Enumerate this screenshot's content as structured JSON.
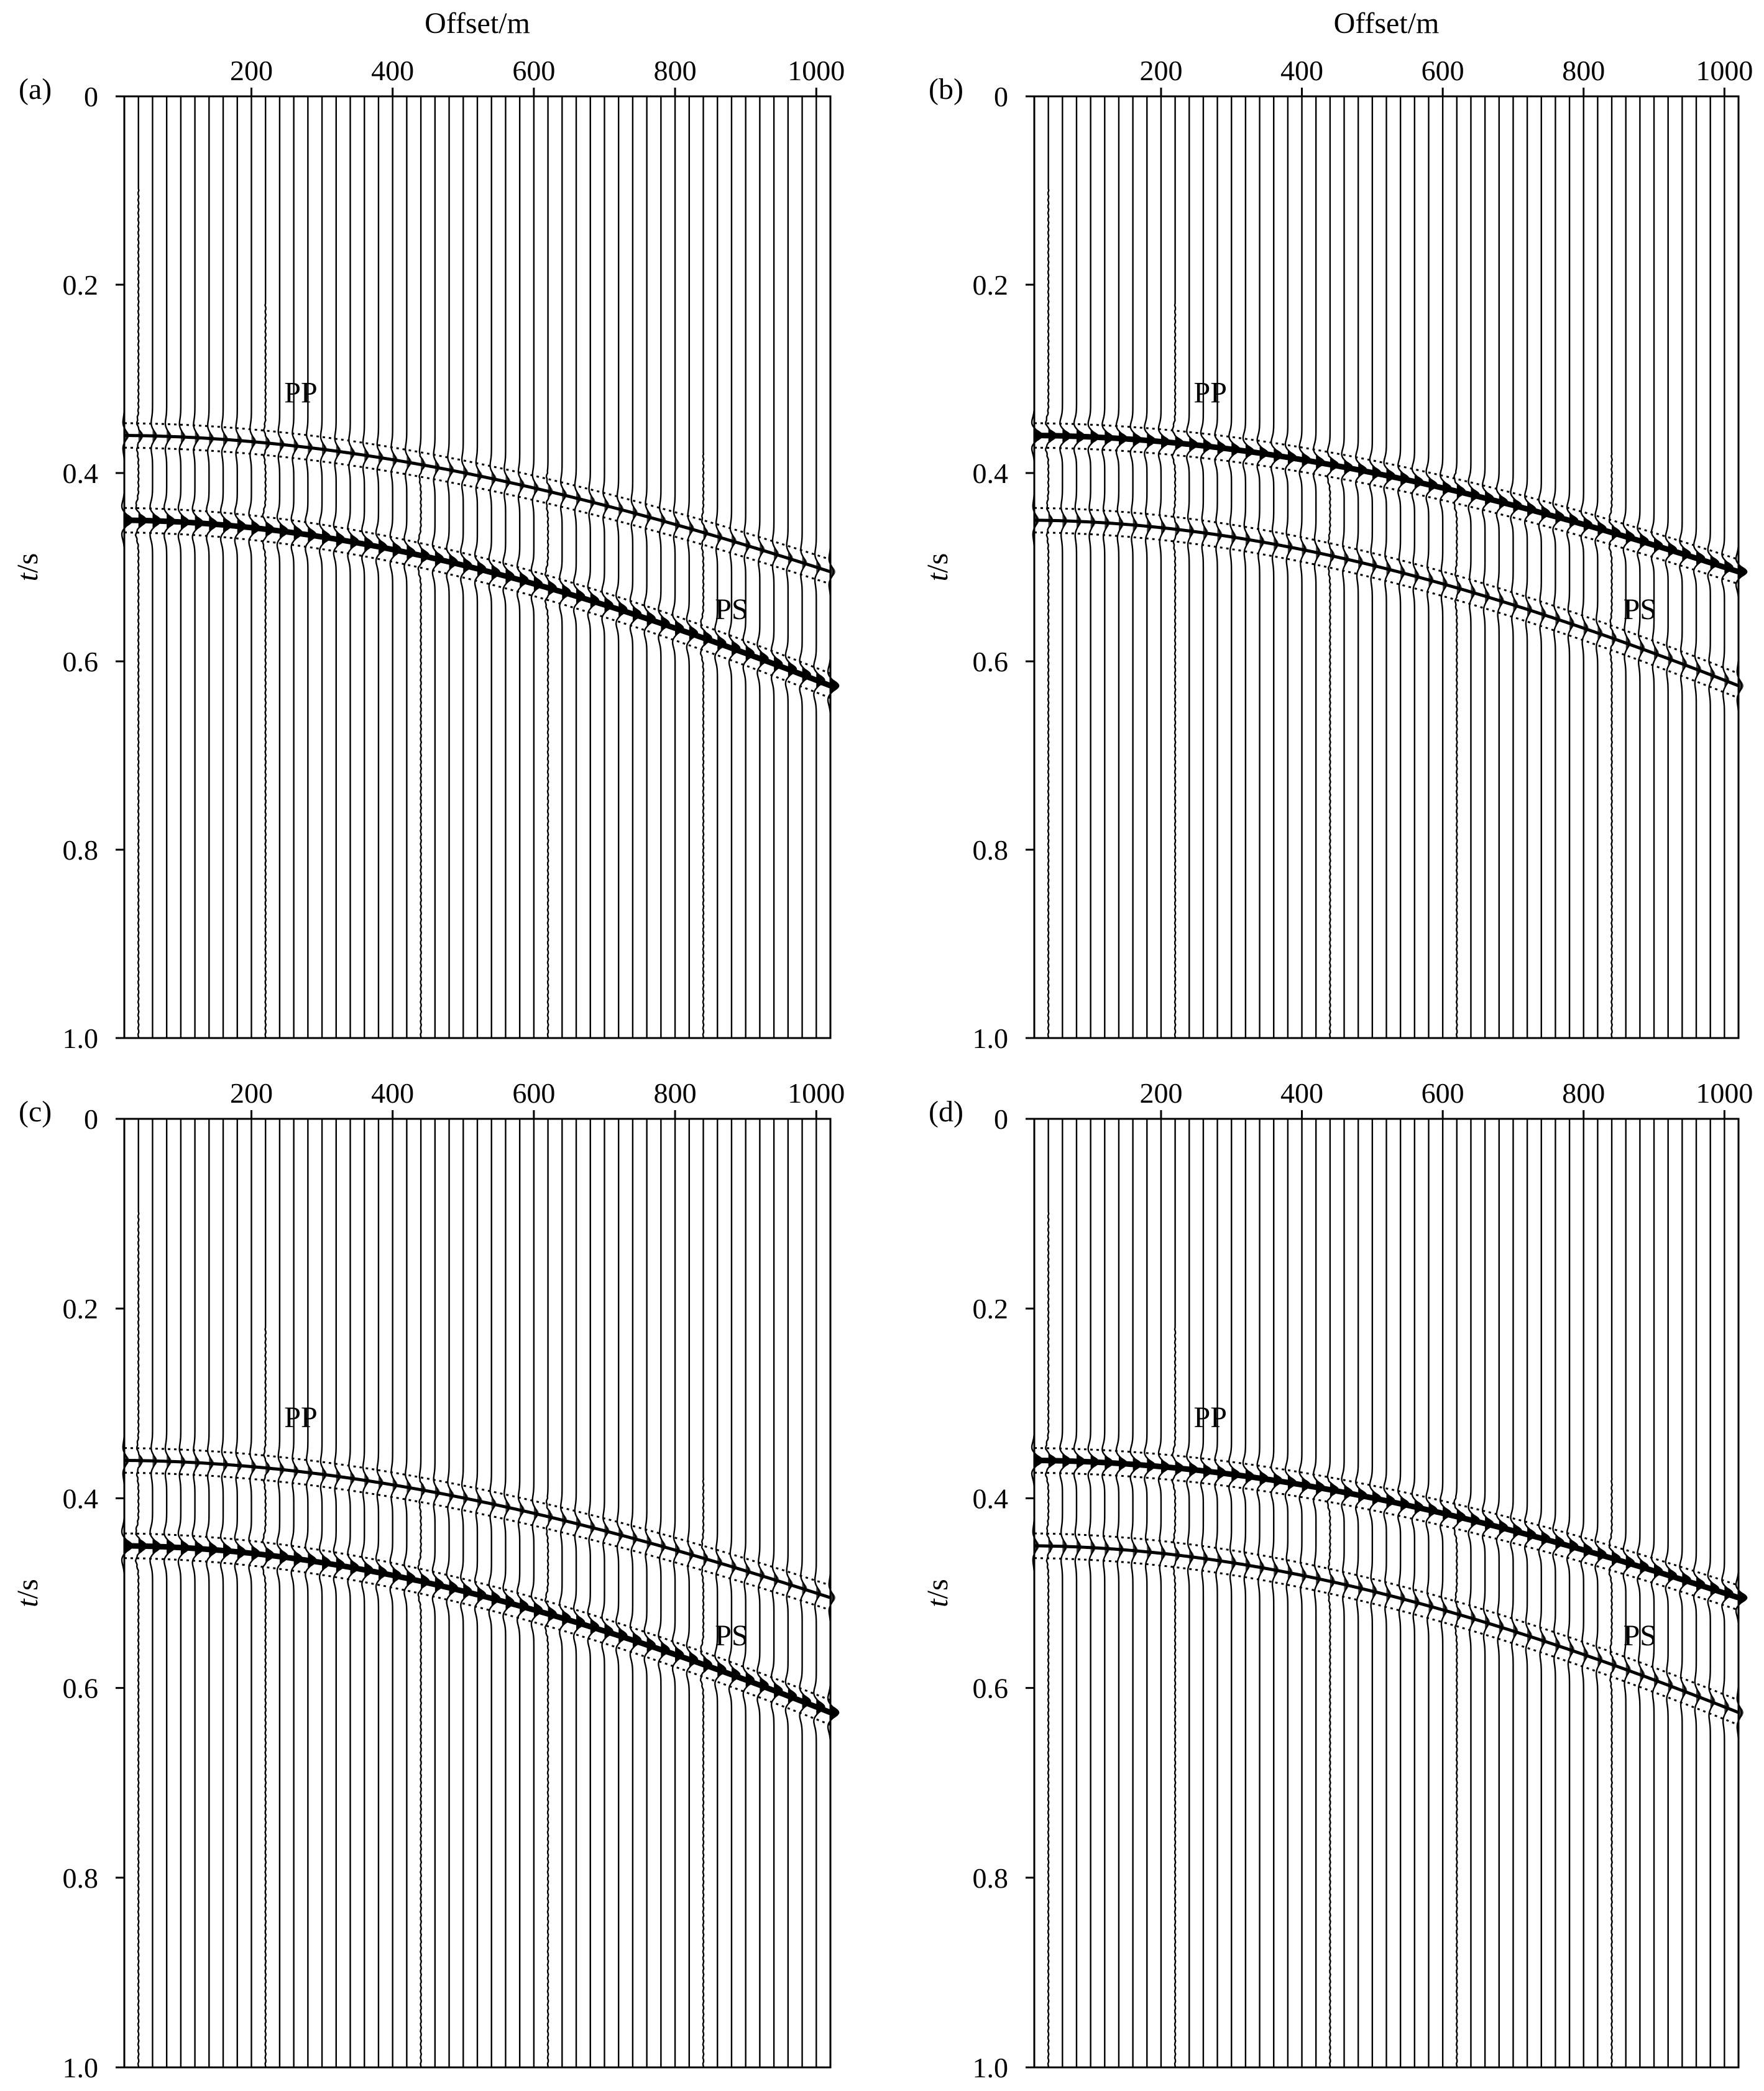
{
  "figure": {
    "panels": [
      {
        "id": "a",
        "label": "(a)",
        "show_top_title": true,
        "show_left_title": true,
        "pp_strength": "weak",
        "ps_strength": "strong",
        "first_trace_gap": "0.25-1.0"
      },
      {
        "id": "b",
        "label": "(b)",
        "show_top_title": true,
        "show_left_title": true,
        "pp_strength": "strong",
        "ps_strength": "weak",
        "first_trace_gap": "none"
      },
      {
        "id": "c",
        "label": "(c)",
        "show_top_title": false,
        "show_left_title": true,
        "pp_strength": "weak",
        "ps_strength": "strong",
        "first_trace_gap": "0.2-1.0"
      },
      {
        "id": "d",
        "label": "(d)",
        "show_top_title": false,
        "show_left_title": true,
        "pp_strength": "strong",
        "ps_strength": "weak",
        "first_trace_gap": "none"
      }
    ]
  },
  "chart_data": [
    {
      "type": "seismic-wiggle",
      "panel": "(a)",
      "xlabel": "Offset/m",
      "ylabel": "t/s",
      "xticks": [
        200,
        400,
        600,
        800,
        1000
      ],
      "yticks": [
        "0",
        "0.2",
        "0.4",
        "0.6",
        "0.8",
        "1.0"
      ],
      "xlim": [
        20,
        1020
      ],
      "ylim": [
        0,
        1.0
      ],
      "trace_spacing_m": 20,
      "events": [
        {
          "name": "PP",
          "t0_s": 0.36,
          "t_at_1000m_s": 0.5
        },
        {
          "name": "PS",
          "t0_s": 0.45,
          "t_at_1000m_s": 0.62
        }
      ]
    },
    {
      "type": "seismic-wiggle",
      "panel": "(b)",
      "xlabel": "Offset/m",
      "ylabel": "t/s",
      "xticks": [
        200,
        400,
        600,
        800,
        1000
      ],
      "yticks": [
        "0",
        "0.2",
        "0.4",
        "0.6",
        "0.8",
        "1.0"
      ],
      "xlim": [
        20,
        1020
      ],
      "ylim": [
        0,
        1.0
      ],
      "trace_spacing_m": 20,
      "events": [
        {
          "name": "PP",
          "t0_s": 0.36,
          "t_at_1000m_s": 0.5
        },
        {
          "name": "PS",
          "t0_s": 0.45,
          "t_at_1000m_s": 0.62
        }
      ]
    },
    {
      "type": "seismic-wiggle",
      "panel": "(c)",
      "xlabel": "",
      "ylabel": "t/s",
      "xticks": [
        200,
        400,
        600,
        800,
        1000
      ],
      "yticks": [
        "0",
        "0.2",
        "0.4",
        "0.6",
        "0.8",
        "1.0"
      ],
      "xlim": [
        20,
        1020
      ],
      "ylim": [
        0,
        1.0
      ],
      "trace_spacing_m": 20,
      "events": [
        {
          "name": "PP",
          "t0_s": 0.36,
          "t_at_1000m_s": 0.5
        },
        {
          "name": "PS",
          "t0_s": 0.45,
          "t_at_1000m_s": 0.62
        }
      ]
    },
    {
      "type": "seismic-wiggle",
      "panel": "(d)",
      "xlabel": "",
      "ylabel": "t/s",
      "xticks": [
        200,
        400,
        600,
        800,
        1000
      ],
      "yticks": [
        "0",
        "0.2",
        "0.4",
        "0.6",
        "0.8",
        "1.0"
      ],
      "xlim": [
        20,
        1020
      ],
      "ylim": [
        0,
        1.0
      ],
      "trace_spacing_m": 20,
      "events": [
        {
          "name": "PP",
          "t0_s": 0.36,
          "t_at_1000m_s": 0.5
        },
        {
          "name": "PS",
          "t0_s": 0.45,
          "t_at_1000m_s": 0.62
        }
      ]
    }
  ]
}
